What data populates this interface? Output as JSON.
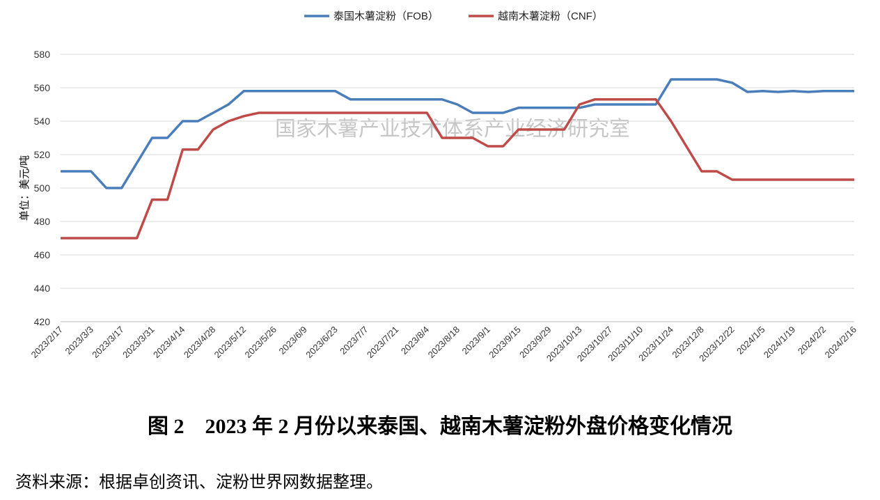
{
  "chart_data": {
    "type": "line",
    "ylabel": "单位：美元/吨",
    "watermark": "国家木薯产业技术体系产业经济研究室",
    "categories": [
      "2023/2/17",
      null,
      "2023/3/3",
      null,
      "2023/3/17",
      null,
      "2023/3/31",
      null,
      "2023/4/14",
      null,
      "2023/4/28",
      null,
      "2023/5/12",
      null,
      "2023/5/26",
      null,
      "2023/6/9",
      null,
      "2023/6/23",
      null,
      "2023/7/7",
      null,
      "2023/7/21",
      null,
      "2023/8/4",
      null,
      "2023/8/18",
      null,
      "2023/9/1",
      null,
      "2023/9/15",
      null,
      "2023/9/29",
      null,
      "2023/10/13",
      null,
      "2023/10/27",
      null,
      "2023/11/10",
      null,
      "2023/11/24",
      null,
      "2023/12/8",
      null,
      "2023/12/22",
      null,
      "2024/1/5",
      null,
      "2024/1/19",
      null,
      "2024/2/2",
      null,
      "2024/2/16"
    ],
    "series": [
      {
        "name": "泰国木薯淀粉（FOB）",
        "color": "#4a7ebb",
        "values": [
          510,
          510,
          510,
          500,
          500,
          515,
          530,
          530,
          540,
          540,
          545,
          550,
          558,
          558,
          558,
          558,
          558,
          558,
          558,
          553,
          553,
          553,
          553,
          553,
          553,
          553,
          550,
          545,
          545,
          545,
          548,
          548,
          548,
          548,
          548,
          550,
          550,
          550,
          550,
          550,
          565,
          565,
          565,
          565,
          563,
          557.5,
          558,
          557.5,
          558,
          557.5,
          558,
          558,
          558
        ]
      },
      {
        "name": "越南木薯淀粉（CNF）",
        "color": "#be4b48",
        "values": [
          470,
          470,
          470,
          470,
          470,
          470,
          493,
          493,
          523,
          523,
          535,
          540,
          543,
          545,
          545,
          545,
          545,
          545,
          545,
          545,
          545,
          545,
          545,
          545,
          545,
          530,
          530,
          530,
          525,
          525,
          535,
          535,
          535,
          535,
          550,
          553,
          553,
          553,
          553,
          553,
          540,
          525,
          510,
          510,
          505,
          505,
          505,
          505,
          505,
          505,
          505,
          505,
          505
        ]
      }
    ],
    "ylim": [
      420,
      580
    ],
    "yticks": [
      420,
      440,
      460,
      480,
      500,
      520,
      540,
      560,
      580
    ],
    "grid": true,
    "legend": "top"
  },
  "caption": "图 2　2023 年 2 月份以来泰国、越南木薯淀粉外盘价格变化情况",
  "source": "资料来源：根据卓创资讯、淀粉世界网数据整理。"
}
